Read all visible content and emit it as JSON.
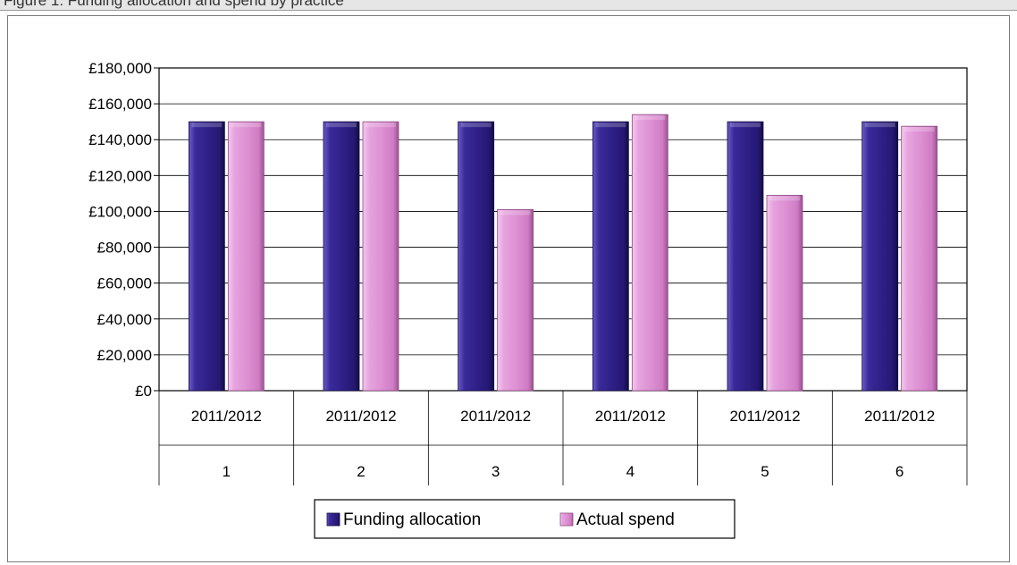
{
  "caption": "Figure 1: Funding allocation and spend by practice",
  "chart_data": {
    "type": "bar",
    "categories": [
      {
        "period": "2011/2012",
        "group": "1"
      },
      {
        "period": "2011/2012",
        "group": "2"
      },
      {
        "period": "2011/2012",
        "group": "3"
      },
      {
        "period": "2011/2012",
        "group": "4"
      },
      {
        "period": "2011/2012",
        "group": "5"
      },
      {
        "period": "2011/2012",
        "group": "6"
      }
    ],
    "series": [
      {
        "name": "Funding allocation",
        "color": "#2e1f86",
        "values": [
          150000,
          150000,
          150000,
          150000,
          150000,
          150000
        ]
      },
      {
        "name": "Actual spend",
        "color": "#dc8fd2",
        "values": [
          150000,
          150000,
          101000,
          154000,
          109000,
          147500
        ]
      }
    ],
    "ylim": [
      0,
      180000
    ],
    "yticks": [
      0,
      20000,
      40000,
      60000,
      80000,
      100000,
      120000,
      140000,
      160000,
      180000
    ],
    "ytick_labels": [
      "£0",
      "£20,000",
      "£40,000",
      "£60,000",
      "£80,000",
      "£100,000",
      "£120,000",
      "£140,000",
      "£160,000",
      "£180,000"
    ],
    "grid": true,
    "legend_position": "bottom",
    "xlabel": "",
    "ylabel": "",
    "title": ""
  }
}
